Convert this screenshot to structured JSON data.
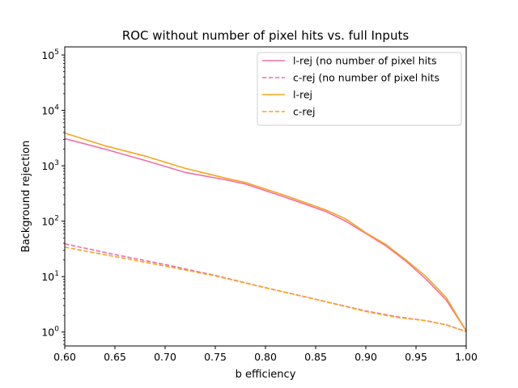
{
  "chart_data": {
    "type": "line",
    "title": "ROC without number of pixel hits vs. full Inputs",
    "xlabel": "b efficiency",
    "ylabel": "Background rejection",
    "xlim": [
      0.6,
      1.0
    ],
    "ylim": [
      0.56,
      140000
    ],
    "yscale": "log",
    "x_ticks": [
      "0.60",
      "0.65",
      "0.70",
      "0.75",
      "0.80",
      "0.85",
      "0.90",
      "0.95",
      "1.00"
    ],
    "y_ticks": [
      {
        "base": "10",
        "exp": "0",
        "value": 1
      },
      {
        "base": "10",
        "exp": "1",
        "value": 10
      },
      {
        "base": "10",
        "exp": "2",
        "value": 100
      },
      {
        "base": "10",
        "exp": "3",
        "value": 1000
      },
      {
        "base": "10",
        "exp": "4",
        "value": 10000
      },
      {
        "base": "10",
        "exp": "5",
        "value": 100000
      }
    ],
    "legend_position": "top-right",
    "series": [
      {
        "name": "l-rej (no number of pixel hits",
        "color": "#f06eaa",
        "dash": "solid",
        "x": [
          0.6,
          0.64,
          0.68,
          0.72,
          0.76,
          0.78,
          0.82,
          0.86,
          0.88,
          0.9,
          0.92,
          0.94,
          0.96,
          0.98,
          1.0
        ],
        "y": [
          3100,
          2000,
          1250,
          760,
          560,
          470,
          270,
          150,
          100,
          60,
          36,
          19,
          9,
          3.8,
          1.05
        ]
      },
      {
        "name": "c-rej (no number of pixel hits",
        "color": "#f06eaa",
        "dash": "dashed",
        "x": [
          0.6,
          0.65,
          0.7,
          0.75,
          0.8,
          0.85,
          0.9,
          0.93,
          0.96,
          0.98,
          1.0
        ],
        "y": [
          39,
          25,
          16.5,
          10.5,
          6.3,
          3.9,
          2.4,
          1.9,
          1.6,
          1.35,
          1.02
        ]
      },
      {
        "name": "l-rej",
        "color": "#f8a51c",
        "dash": "solid",
        "x": [
          0.6,
          0.64,
          0.68,
          0.72,
          0.76,
          0.78,
          0.82,
          0.86,
          0.88,
          0.9,
          0.92,
          0.94,
          0.96,
          0.98,
          1.0
        ],
        "y": [
          3900,
          2300,
          1500,
          900,
          600,
          500,
          290,
          160,
          110,
          62,
          38,
          20,
          10,
          4.2,
          1.05
        ]
      },
      {
        "name": "c-rej",
        "color": "#f8a51c",
        "dash": "dashed",
        "x": [
          0.6,
          0.65,
          0.7,
          0.75,
          0.8,
          0.85,
          0.9,
          0.93,
          0.96,
          0.98,
          1.0
        ],
        "y": [
          34,
          23,
          15.5,
          10.3,
          6.3,
          3.9,
          2.35,
          1.85,
          1.6,
          1.35,
          1.02
        ]
      }
    ]
  }
}
